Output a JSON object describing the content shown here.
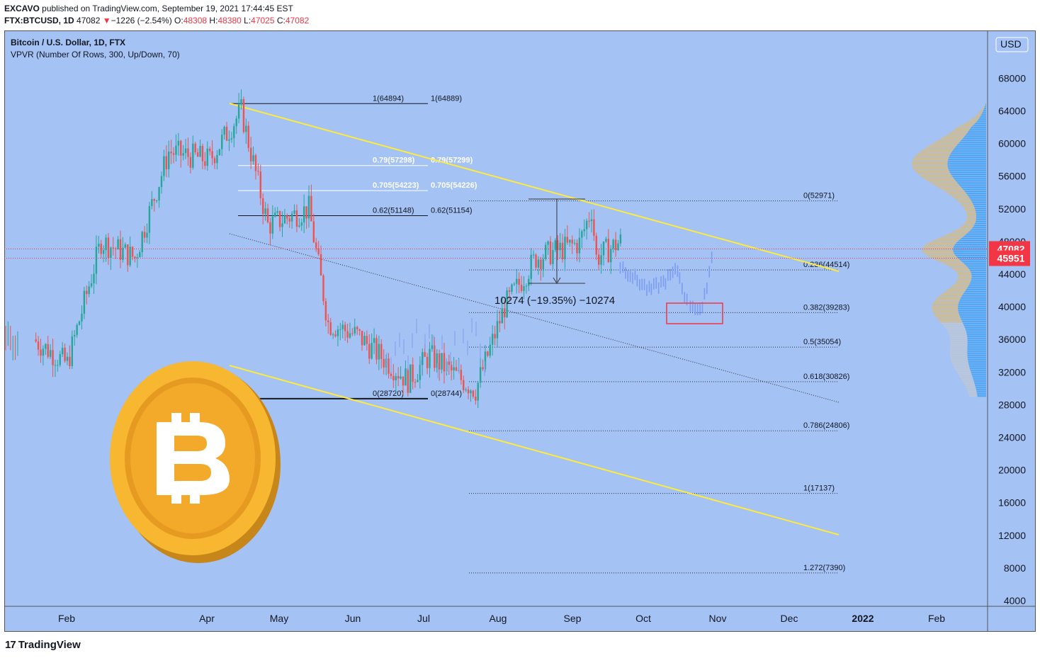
{
  "header": {
    "line1_author": "EXCAVO",
    "line1_rest": "published on TradingView.com, September 19, 2021 17:44:45 EST",
    "symbol": "FTX:BTCUSD, 1D",
    "last": "47082",
    "change_arrow": "▼",
    "change": "−1226 (−2.54%)",
    "o_label": "O:",
    "o": "48308",
    "h_label": "H:",
    "h": "48380",
    "l_label": "L:",
    "l": "47025",
    "c_label": "C:",
    "c": "47082"
  },
  "legend": {
    "title": "Bitcoin / U.S. Dollar, 1D, FTX",
    "indicator": "VPVR (Number Of Rows, 300, Up/Down, 70)"
  },
  "footer": {
    "logo_mark": "17",
    "brand": "TradingView"
  },
  "colors": {
    "background": "#a4c2f4",
    "candle_up": "#26a69a",
    "candle_down": "#ef5350",
    "channel": "#ffeb3b",
    "vpvr_up": "#2196f3",
    "vpvr_down": "#e6b85c",
    "price_tag": "#f23645",
    "box": "#f23645"
  },
  "chart_data": {
    "type": "line",
    "title": "Bitcoin / U.S. Dollar, 1D, FTX",
    "currency": "USD",
    "y_axis_ticks": [
      4000,
      8000,
      12000,
      16000,
      20000,
      24000,
      28000,
      32000,
      36000,
      40000,
      44000,
      48000,
      52000,
      56000,
      60000,
      64000,
      68000
    ],
    "x_axis_ticks": [
      "Feb",
      "Apr",
      "May",
      "Jun",
      "Jul",
      "Aug",
      "Sep",
      "Oct",
      "Nov",
      "Dec",
      "2022",
      "Feb"
    ],
    "ylim": [
      3000,
      71000
    ],
    "price_tags": [
      {
        "label": "47082",
        "value": 47082
      },
      {
        "label": "45951",
        "value": 45951
      }
    ],
    "series": [
      {
        "x": [
          "2021-01-18",
          "2021-02-01",
          "2021-02-15",
          "2021-03-01",
          "2021-03-15",
          "2021-04-01",
          "2021-04-14",
          "2021-04-25",
          "2021-05-12",
          "2021-05-20",
          "2021-06-01",
          "2021-06-22",
          "2021-07-01",
          "2021-07-20",
          "2021-08-01",
          "2021-08-14",
          "2021-09-01",
          "2021-09-06",
          "2021-09-08",
          "2021-09-18"
        ],
        "values": [
          36000,
          33000,
          48000,
          46000,
          59000,
          58000,
          64000,
          50000,
          52000,
          38000,
          36500,
          31000,
          34000,
          29800,
          40000,
          46000,
          47800,
          52000,
          46000,
          48000
        ]
      }
    ],
    "fib_retracement_left": [
      {
        "label": "1(64894)",
        "label2": "1(64889)",
        "value": 64889
      },
      {
        "label": "0.79(57298)",
        "label2": "0.79(57299)",
        "value": 57299
      },
      {
        "label": "0.705(54223)",
        "label2": "0.705(54226)",
        "value": 54226
      },
      {
        "label": "0.62(51148)",
        "label2": "0.62(51154)",
        "value": 51154
      },
      {
        "label": "0(28720)",
        "label2": "0(28744)",
        "value": 28744
      }
    ],
    "fib_extension_right": [
      {
        "label": "0(52971)",
        "value": 52971
      },
      {
        "label": "0.236(44514)",
        "value": 44514
      },
      {
        "label": "0.382(39283)",
        "value": 39283
      },
      {
        "label": "0.5(35054)",
        "value": 35054
      },
      {
        "label": "0.618(30826)",
        "value": 30826
      },
      {
        "label": "0.786(24806)",
        "value": 24806
      },
      {
        "label": "1(17137)",
        "value": 17137
      },
      {
        "label": "1.272(7390)",
        "value": 7390
      }
    ],
    "measure": {
      "label": "10274 (−19.35%) −10274",
      "value": -10274
    },
    "projection_box": [
      38000,
      40500
    ],
    "vpvr_range": [
      29000,
      65000
    ]
  }
}
